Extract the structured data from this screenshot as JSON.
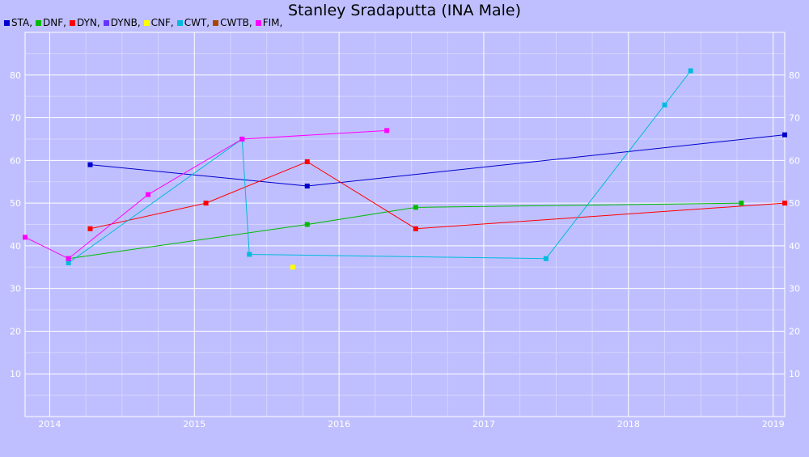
{
  "chart_data": {
    "type": "line",
    "title": "Stanley Sradaputta (INA Male)",
    "xlabel": "",
    "ylabel": "",
    "x_axis": "date (decimal year)",
    "xlim": [
      2013.83,
      2019.08
    ],
    "ylim": [
      0,
      90
    ],
    "x_ticks": [
      {
        "value": 2014.0,
        "label": "2014"
      },
      {
        "value": 2015.0,
        "label": "2015"
      },
      {
        "value": 2016.0,
        "label": "2016"
      },
      {
        "value": 2017.0,
        "label": "2017"
      },
      {
        "value": 2018.0,
        "label": "2018"
      },
      {
        "value": 2019.0,
        "label": "2019"
      }
    ],
    "y_ticks": [
      10,
      20,
      30,
      40,
      50,
      60,
      70,
      80
    ],
    "y_tick_labels": [
      "10",
      "20",
      "30",
      "40",
      "50",
      "60",
      "70",
      "80"
    ],
    "grid": true,
    "legend_position": "top-left",
    "series": [
      {
        "name": "STA,",
        "color": "#0000cc",
        "points": [
          [
            2014.28,
            59
          ],
          [
            2015.78,
            54
          ],
          [
            2019.08,
            66
          ]
        ]
      },
      {
        "name": "DNF,",
        "color": "#00bb00",
        "points": [
          [
            2014.13,
            37
          ],
          [
            2015.78,
            45
          ],
          [
            2016.53,
            49
          ],
          [
            2018.78,
            50
          ]
        ]
      },
      {
        "name": "DYN,",
        "color": "#ff0000",
        "points": [
          [
            2014.28,
            44
          ],
          [
            2015.08,
            50
          ],
          [
            2015.78,
            59.7
          ],
          [
            2016.53,
            44
          ],
          [
            2019.08,
            50
          ]
        ]
      },
      {
        "name": "DYNB,",
        "color": "#6633ff",
        "points": []
      },
      {
        "name": "CNF,",
        "color": "#ffff00",
        "points": [
          [
            2015.68,
            35
          ]
        ]
      },
      {
        "name": "CWT,",
        "color": "#00bbdd",
        "points": [
          [
            2014.13,
            36
          ],
          [
            2015.33,
            65
          ],
          [
            2015.38,
            38
          ],
          [
            2017.43,
            37
          ],
          [
            2018.25,
            73
          ],
          [
            2018.43,
            81
          ]
        ]
      },
      {
        "name": "CWTB,",
        "color": "#aa4400",
        "points": []
      },
      {
        "name": "FIM,",
        "color": "#ff00ff",
        "points": [
          [
            2013.83,
            42
          ],
          [
            2014.13,
            37
          ],
          [
            2014.68,
            52
          ],
          [
            2015.33,
            65
          ],
          [
            2016.33,
            67
          ]
        ]
      }
    ]
  }
}
